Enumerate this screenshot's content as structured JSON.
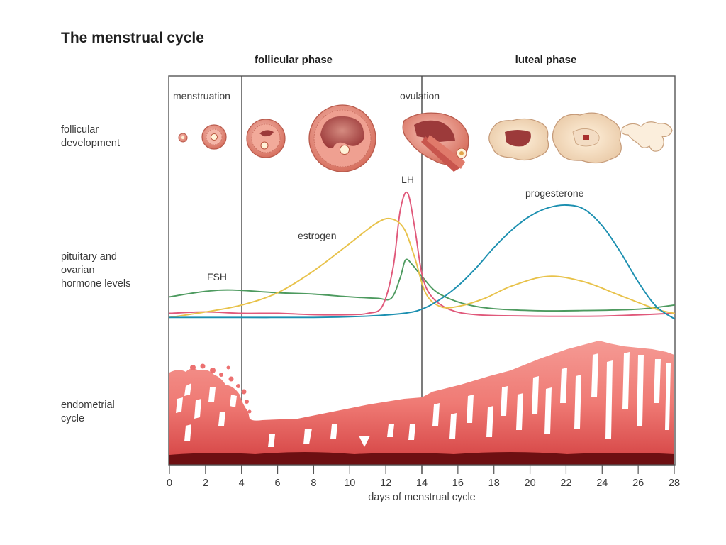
{
  "title": "The menstrual cycle",
  "phases": {
    "follicular": "follicular phase",
    "luteal": "luteal phase"
  },
  "events": {
    "menstruation": "menstruation",
    "ovulation": "ovulation"
  },
  "row_labels": {
    "follicular_development": "follicular\ndevelopment",
    "hormones": "pituitary and\novarian\nhormone levels",
    "endometrial": "endometrial\ncycle"
  },
  "hormone_labels": {
    "fsh": "FSH",
    "lh": "LH",
    "estrogen": "estrogen",
    "progesterone": "progesterone"
  },
  "axis": {
    "xlabel": "days of menstrual cycle",
    "ticks": [
      "0",
      "2",
      "4",
      "6",
      "8",
      "10",
      "12",
      "14",
      "16",
      "18",
      "20",
      "22",
      "24",
      "26",
      "28"
    ],
    "range": [
      0,
      28
    ]
  },
  "colors": {
    "fsh": "#4d9a5f",
    "lh": "#e0587a",
    "estrogen": "#e8c24a",
    "progesterone": "#1b8fb0",
    "endometrium": "#ec6a6a",
    "endometrium_base": "#6d0f12",
    "follicle": "#d9786a"
  },
  "chart_data": {
    "type": "line",
    "xlabel": "days of menstrual cycle",
    "xlim": [
      0,
      28
    ],
    "series": [
      {
        "name": "FSH",
        "x": [
          0,
          2,
          3.5,
          6,
          8,
          10,
          11.5,
          12.3,
          12.8,
          13.1,
          13.5,
          14,
          15,
          17,
          20,
          23,
          26,
          28
        ],
        "y": [
          0.19,
          0.23,
          0.24,
          0.22,
          0.21,
          0.19,
          0.18,
          0.18,
          0.33,
          0.46,
          0.42,
          0.34,
          0.21,
          0.12,
          0.09,
          0.09,
          0.1,
          0.13
        ]
      },
      {
        "name": "LH",
        "x": [
          0,
          2,
          4,
          6,
          8,
          10,
          11,
          11.8,
          12.4,
          12.8,
          13.2,
          13.6,
          14,
          14.5,
          15.5,
          17,
          20,
          24,
          28
        ],
        "y": [
          0.07,
          0.08,
          0.07,
          0.07,
          0.06,
          0.06,
          0.07,
          0.12,
          0.4,
          0.82,
          0.95,
          0.7,
          0.36,
          0.2,
          0.1,
          0.06,
          0.05,
          0.05,
          0.07
        ]
      },
      {
        "name": "estrogen",
        "x": [
          0,
          2,
          4,
          6,
          8,
          10,
          11.5,
          12.3,
          13,
          13.6,
          14.2,
          15,
          16,
          17.5,
          19,
          21,
          23,
          25,
          27,
          28
        ],
        "y": [
          0.04,
          0.08,
          0.13,
          0.22,
          0.38,
          0.58,
          0.73,
          0.76,
          0.69,
          0.48,
          0.22,
          0.12,
          0.12,
          0.18,
          0.27,
          0.34,
          0.3,
          0.2,
          0.1,
          0.07
        ]
      },
      {
        "name": "progesterone",
        "x": [
          0,
          4,
          8,
          11,
          13,
          14,
          15,
          16,
          17,
          18,
          19,
          20,
          21,
          22,
          23,
          24,
          25,
          26,
          27,
          28
        ],
        "y": [
          0.04,
          0.04,
          0.04,
          0.05,
          0.07,
          0.1,
          0.17,
          0.27,
          0.4,
          0.55,
          0.68,
          0.78,
          0.84,
          0.86,
          0.83,
          0.71,
          0.52,
          0.3,
          0.12,
          0.03
        ]
      }
    ]
  }
}
